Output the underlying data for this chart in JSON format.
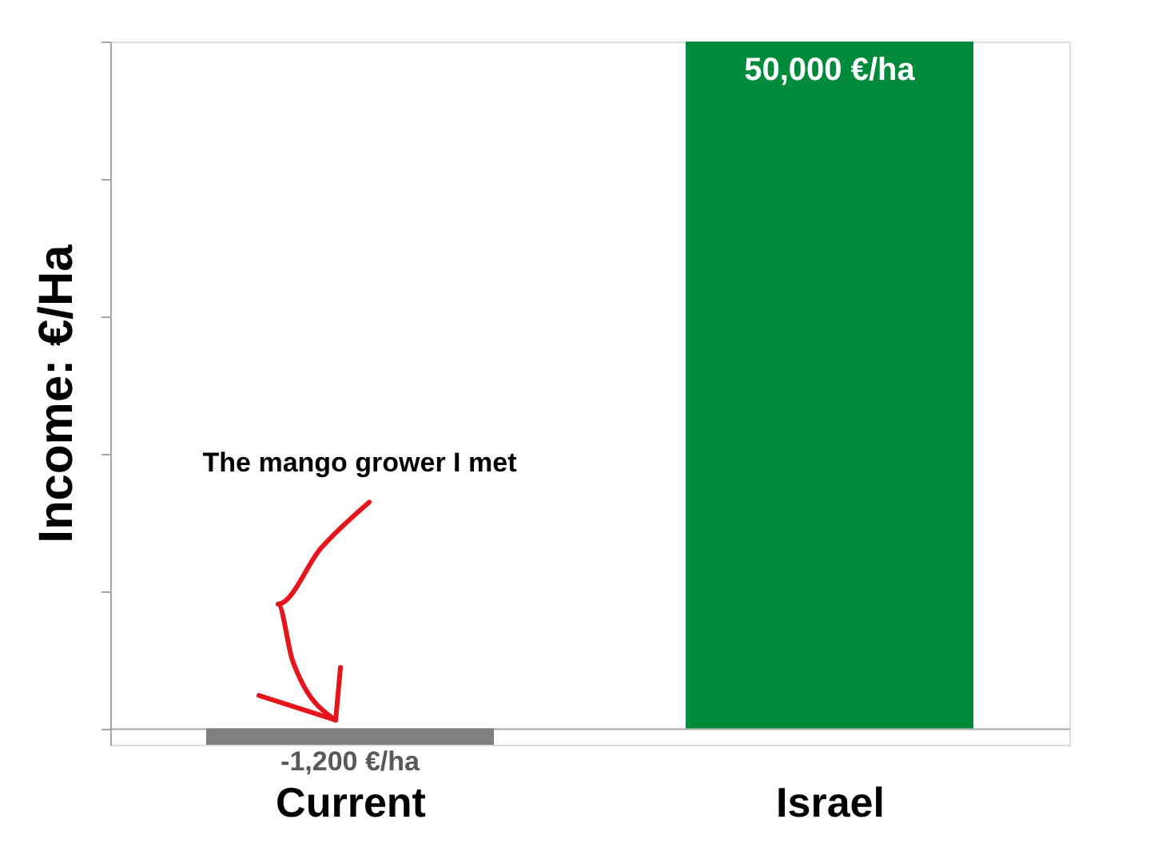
{
  "chart_data": {
    "type": "bar",
    "ylabel": "Income: €/Ha",
    "categories": [
      "Current",
      "Israel"
    ],
    "series": [
      {
        "colors": [
          "#7f7f7f",
          "#008a3c"
        ],
        "values": [
          -1200,
          50000
        ],
        "value_labels": [
          "-1,200 €/ha",
          "50,000 €/ha"
        ]
      }
    ],
    "tick_labels": "x",
    "annotations": [
      "The mango grower I met"
    ]
  }
}
